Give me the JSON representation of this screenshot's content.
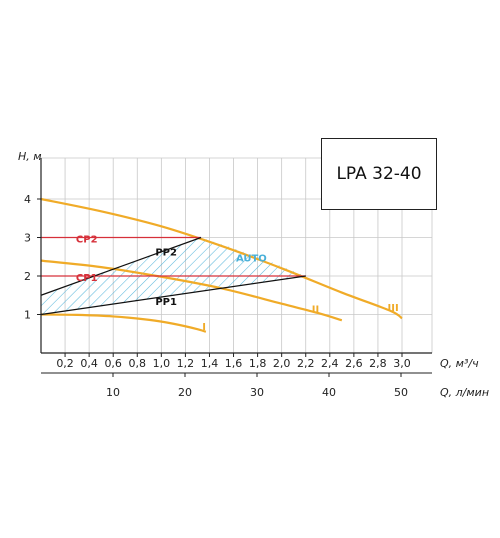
{
  "chart_data": {
    "type": "line",
    "title": "LPA 32-40",
    "ylabel": "H, м",
    "xlabel": "Q, м³/ч",
    "xlabel2": "Q, л/мин",
    "xlim": [
      0,
      3.2
    ],
    "ylim": [
      0,
      5
    ],
    "x_ticks": [
      "0,2",
      "0,4",
      "0,6",
      "0,8",
      "1,0",
      "1,2",
      "1,4",
      "1,6",
      "1,8",
      "2,0",
      "2,2",
      "2,4",
      "2,6",
      "2,8",
      "3,0"
    ],
    "x_tick_values": [
      0.2,
      0.4,
      0.6,
      0.8,
      1.0,
      1.2,
      1.4,
      1.6,
      1.8,
      2.0,
      2.2,
      2.4,
      2.6,
      2.8,
      3.0
    ],
    "y_ticks": [
      "1",
      "2",
      "3",
      "4"
    ],
    "y_tick_values": [
      1,
      2,
      3,
      4
    ],
    "x2_ticks": [
      "10",
      "20",
      "30",
      "40",
      "50"
    ],
    "x2_tick_values": [
      10,
      20,
      30,
      40,
      50
    ],
    "grid": true,
    "colors": {
      "curve": "#f0ab28",
      "cp": "#d6303a",
      "pp": "#111111",
      "auto": "#4ab0d8",
      "grid": "#c8c8c8"
    },
    "series": [
      {
        "name": "I",
        "kind": "speed",
        "x": [
          0,
          0.3,
          0.6,
          0.9,
          1.1,
          1.3,
          1.37
        ],
        "y": [
          1.0,
          0.99,
          0.95,
          0.86,
          0.76,
          0.62,
          0.55
        ],
        "label_at": [
          1.34,
          0.7
        ]
      },
      {
        "name": "II",
        "kind": "speed",
        "x": [
          0,
          0.5,
          1.0,
          1.5,
          2.0,
          2.3,
          2.5
        ],
        "y": [
          2.4,
          2.23,
          1.98,
          1.68,
          1.28,
          1.04,
          0.85
        ],
        "label_at": [
          2.25,
          1.15
        ]
      },
      {
        "name": "III",
        "kind": "speed",
        "x": [
          0,
          0.5,
          1.0,
          1.5,
          2.0,
          2.5,
          2.9,
          3.0
        ],
        "y": [
          4.0,
          3.68,
          3.29,
          2.78,
          2.2,
          1.57,
          1.1,
          0.9
        ],
        "label_at": [
          2.88,
          1.2
        ]
      },
      {
        "name": "CP2",
        "kind": "cp",
        "x": [
          0,
          1.33
        ],
        "y": [
          3.0,
          3.0
        ],
        "label_at": [
          0.38,
          2.97
        ]
      },
      {
        "name": "CP1",
        "kind": "cp",
        "x": [
          0,
          2.2
        ],
        "y": [
          2.0,
          2.0
        ],
        "label_at": [
          0.38,
          1.97
        ]
      },
      {
        "name": "PP2",
        "kind": "pp",
        "x": [
          0,
          1.33
        ],
        "y": [
          1.5,
          3.0
        ],
        "label_at": [
          0.95,
          2.63
        ]
      },
      {
        "name": "PP1",
        "kind": "pp",
        "x": [
          0,
          2.2
        ],
        "y": [
          1.0,
          2.0
        ],
        "label_at": [
          0.95,
          1.35
        ]
      }
    ],
    "annotations": [
      {
        "text": "AUTO",
        "at": [
          1.62,
          2.38
        ]
      }
    ]
  }
}
